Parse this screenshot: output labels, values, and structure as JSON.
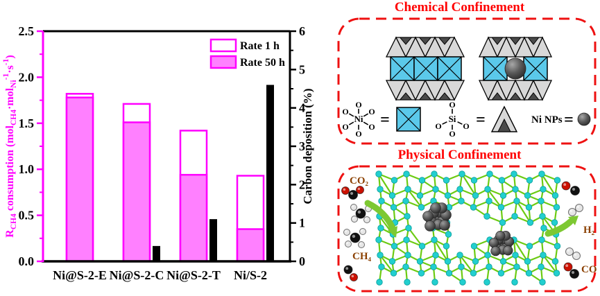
{
  "chart_data": {
    "type": "bar",
    "title": "",
    "categories": [
      "Ni@S-2-E",
      "Ni@S-2-C",
      "Ni@S-2-T",
      "Ni/S-2"
    ],
    "series": [
      {
        "name": "Rate 1 h",
        "axis": "left",
        "style": "open",
        "values": [
          1.82,
          1.71,
          1.42,
          0.93
        ]
      },
      {
        "name": "Rate 50 h",
        "axis": "left",
        "style": "filled",
        "values": [
          1.78,
          1.51,
          0.94,
          0.35
        ]
      },
      {
        "name": "Carbon deposition",
        "axis": "right",
        "style": "solid-black",
        "values": [
          0,
          0.4,
          1.1,
          4.6
        ]
      }
    ],
    "left_axis": {
      "label_segments": [
        {
          "t": "R"
        },
        {
          "t": "CH4",
          "sub": true
        },
        {
          "t": " consumption (mol"
        },
        {
          "t": "CH4",
          "sub": true
        },
        {
          "t": "·mol"
        },
        {
          "t": "Ni",
          "sub": true
        },
        {
          "t": "-1",
          "sup": true
        },
        {
          "t": "·s"
        },
        {
          "t": "-1",
          "sup": true
        },
        {
          "t": ")"
        }
      ],
      "ticks": [
        "0.0",
        "0.5",
        "1.0",
        "1.5",
        "2.0",
        "2.5"
      ],
      "min": 0,
      "max": 2.5,
      "minor_step": 0.25
    },
    "right_axis": {
      "label": "Carbon deposition (%)",
      "ticks": [
        "0",
        "1",
        "2",
        "3",
        "4",
        "5",
        "6"
      ],
      "min": 0,
      "max": 6,
      "minor_step": 0.5
    },
    "legend": {
      "position": "top-right",
      "entries": [
        "Rate 1 h",
        "Rate 50 h"
      ]
    },
    "grid": false,
    "ylim_left": [
      0,
      2.5
    ],
    "ylim_right": [
      0,
      6
    ]
  },
  "panels": {
    "chemical": {
      "title": "Chemical Confinement",
      "legend": {
        "o_label": "O",
        "ni_label": "Ni",
        "si_label": "Si",
        "equals": "=",
        "ni_nps_label": "Ni NPs"
      }
    },
    "physical": {
      "title": "Physical Confinement",
      "labels": {
        "co2": "CO₂",
        "ch4": "CH₄",
        "h2": "H₂",
        "co": "CO"
      }
    }
  },
  "colors": {
    "magenta": "#FF00FF",
    "bar_fill": "#FF80FF",
    "axis_black": "#000000",
    "title_red": "#FF0000",
    "border_red": "#EE1111",
    "cyan_square": "#5BC9EA",
    "tri_light": "#D8D8D8",
    "tri_dark": "#4A4A4A",
    "atom_cyan": "#22CFCF",
    "bond_green": "#6CCB12",
    "label_brown": "#8B4000",
    "arrow_green": "#7DC832",
    "mol_red": "#CC1100",
    "mol_black": "#111111",
    "mol_white": "#E6E6E6"
  }
}
